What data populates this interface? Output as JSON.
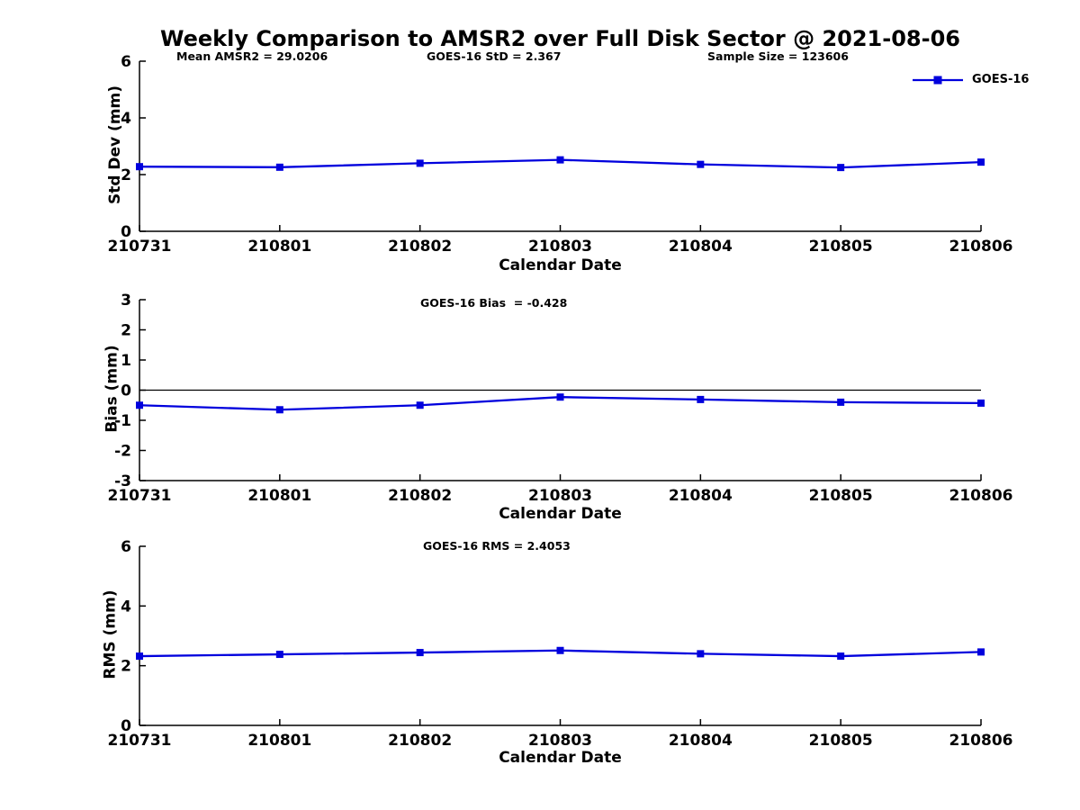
{
  "figure_title": "Weekly Comparison to AMSR2 over Full Disk Sector @ 2021-08-06",
  "legend": {
    "label": "GOES-16"
  },
  "colors": {
    "series": "#0000dd",
    "axis": "#000000"
  },
  "chart_data": [
    {
      "type": "line",
      "panel": "std-dev",
      "annotations": [
        "Mean AMSR2 = 29.0206",
        "GOES-16 StD = 2.367",
        "Sample Size = 123606"
      ],
      "ylabel": "Std Dev (mm)",
      "xlabel": "Calendar Date",
      "categories": [
        "210731",
        "210801",
        "210802",
        "210803",
        "210804",
        "210805",
        "210806"
      ],
      "series": [
        {
          "name": "GOES-16",
          "values": [
            2.28,
            2.26,
            2.4,
            2.52,
            2.36,
            2.25,
            2.44
          ]
        }
      ],
      "ylim": [
        0,
        6
      ],
      "yticks": [
        0,
        2,
        4,
        6
      ],
      "zero_line": false,
      "grid": false,
      "legend_position": "top-right-outside"
    },
    {
      "type": "line",
      "panel": "bias",
      "annotations": [
        "GOES-16 Bias  = -0.428"
      ],
      "ylabel": "Bias (mm)",
      "xlabel": "Calendar Date",
      "categories": [
        "210731",
        "210801",
        "210802",
        "210803",
        "210804",
        "210805",
        "210806"
      ],
      "series": [
        {
          "name": "GOES-16",
          "values": [
            -0.5,
            -0.65,
            -0.5,
            -0.23,
            -0.31,
            -0.4,
            -0.43
          ]
        }
      ],
      "ylim": [
        -3,
        3
      ],
      "yticks": [
        -3,
        -2,
        -1,
        0,
        1,
        2,
        3
      ],
      "zero_line": true,
      "grid": false
    },
    {
      "type": "line",
      "panel": "rms",
      "annotations": [
        "GOES-16 RMS = 2.4053"
      ],
      "ylabel": "RMS (mm)",
      "xlabel": "Calendar Date",
      "categories": [
        "210731",
        "210801",
        "210802",
        "210803",
        "210804",
        "210805",
        "210806"
      ],
      "series": [
        {
          "name": "GOES-16",
          "values": [
            2.32,
            2.38,
            2.44,
            2.51,
            2.4,
            2.32,
            2.46
          ]
        }
      ],
      "ylim": [
        0,
        6
      ],
      "yticks": [
        0,
        2,
        4,
        6
      ],
      "zero_line": false,
      "grid": false
    }
  ]
}
